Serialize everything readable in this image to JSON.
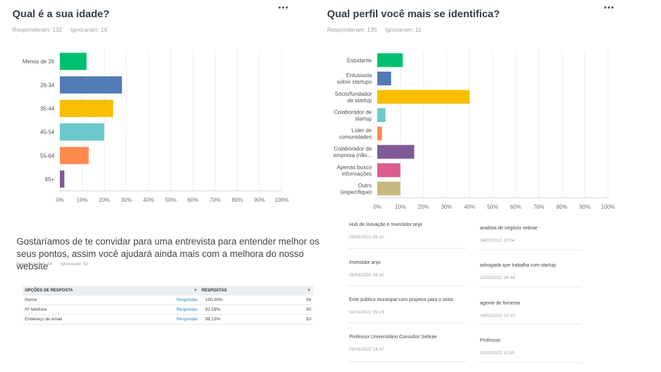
{
  "q1": {
    "title": "Qual é a sua idade?",
    "answered": "Responderam: 132",
    "skipped": "Ignoraram: 14",
    "menu": "•••"
  },
  "q2": {
    "title": "Qual perfil você mais se identifica?",
    "answered": "Responderam: 135",
    "skipped": "Ignoraram: 11",
    "menu": "•••"
  },
  "chart_data": [
    {
      "type": "bar",
      "orientation": "horizontal",
      "title": "Qual é a sua idade?",
      "categories": [
        "Menos de 26",
        "26-34",
        "35-44",
        "45-54",
        "55-64",
        "65+"
      ],
      "values": [
        12,
        28,
        24,
        20,
        13,
        2
      ],
      "colors": [
        "#00bf6f",
        "#507cb6",
        "#f9be00",
        "#6bc8cd",
        "#ff8b4f",
        "#7f5a97"
      ],
      "xlim": [
        0,
        100
      ],
      "xticks": [
        "0%",
        "10%",
        "20%",
        "30%",
        "40%",
        "50%",
        "60%",
        "70%",
        "80%",
        "90%",
        "100%"
      ],
      "xlabel": "",
      "ylabel": ""
    },
    {
      "type": "bar",
      "orientation": "horizontal",
      "title": "Qual perfil você mais se identifica?",
      "categories": [
        [
          "Estudante"
        ],
        [
          "Entusiasta",
          "sobre startups"
        ],
        [
          "Sócio/fundador",
          "de startup"
        ],
        [
          "Colaborador de",
          "startup"
        ],
        [
          "Líder de",
          "comunidades"
        ],
        [
          "Colaborador de",
          "empresa (não..."
        ],
        [
          "Apenas busco",
          "informações"
        ],
        [
          "Outro",
          "(especifique)"
        ]
      ],
      "values": [
        11,
        6,
        40,
        3.5,
        2,
        16,
        10,
        10
      ],
      "colors": [
        "#00bf6f",
        "#507cb6",
        "#f9be00",
        "#6bc8cd",
        "#ff8b4f",
        "#7f5a97",
        "#dd5b8e",
        "#c8b97f"
      ],
      "xlim": [
        0,
        100
      ],
      "xticks": [
        "0%",
        "10%",
        "20%",
        "30%",
        "40%",
        "50%",
        "60%",
        "70%",
        "80%",
        "90%",
        "100%"
      ],
      "xlabel": "",
      "ylabel": ""
    }
  ],
  "q3": {
    "title": "Gostaríamos de te convidar para uma entrevista para entender melhor os seus pontos, assim você ajudará ainda mais com a melhora do nosso website",
    "answered": "Responderam: 54",
    "skipped": "Ignoraram: 92",
    "table": {
      "header_option": "OPÇÕES DE RESPOSTA",
      "header_responses": "RESPOSTAS",
      "rows": [
        {
          "option": "Nome",
          "link": "Respostas",
          "percent": "100,00%",
          "count": "54"
        },
        {
          "option": "Nº telefone",
          "link": "Respostas",
          "percent": "92,59%",
          "count": "50"
        },
        {
          "option": "Endereço de email",
          "link": "Respostas",
          "percent": "98,15%",
          "count": "53"
        }
      ]
    }
  },
  "responses": {
    "left": [
      {
        "text": "Hub de Inovação e Investidor anjo",
        "date": "09/03/2022 09:10"
      },
      {
        "text": "Investidor anjo",
        "date": "06/03/2022 18:32"
      },
      {
        "text": "Ente público municipal com projetos para o setor.",
        "date": "04/03/2022 09:24"
      },
      {
        "text": "Professor Universitário Consultor Sebrae",
        "date": "03/03/2022 14:47"
      }
    ],
    "right": [
      {
        "text": "analista de negócio sebrae",
        "date": "24/02/2022 10:04"
      },
      {
        "text": "advogada que trabalha com startup",
        "date": "21/02/2022 16:34"
      },
      {
        "text": "agente de fomento",
        "date": "14/02/2022 15:13"
      },
      {
        "text": "Professor",
        "date": "13/02/2022 11:59"
      }
    ]
  }
}
